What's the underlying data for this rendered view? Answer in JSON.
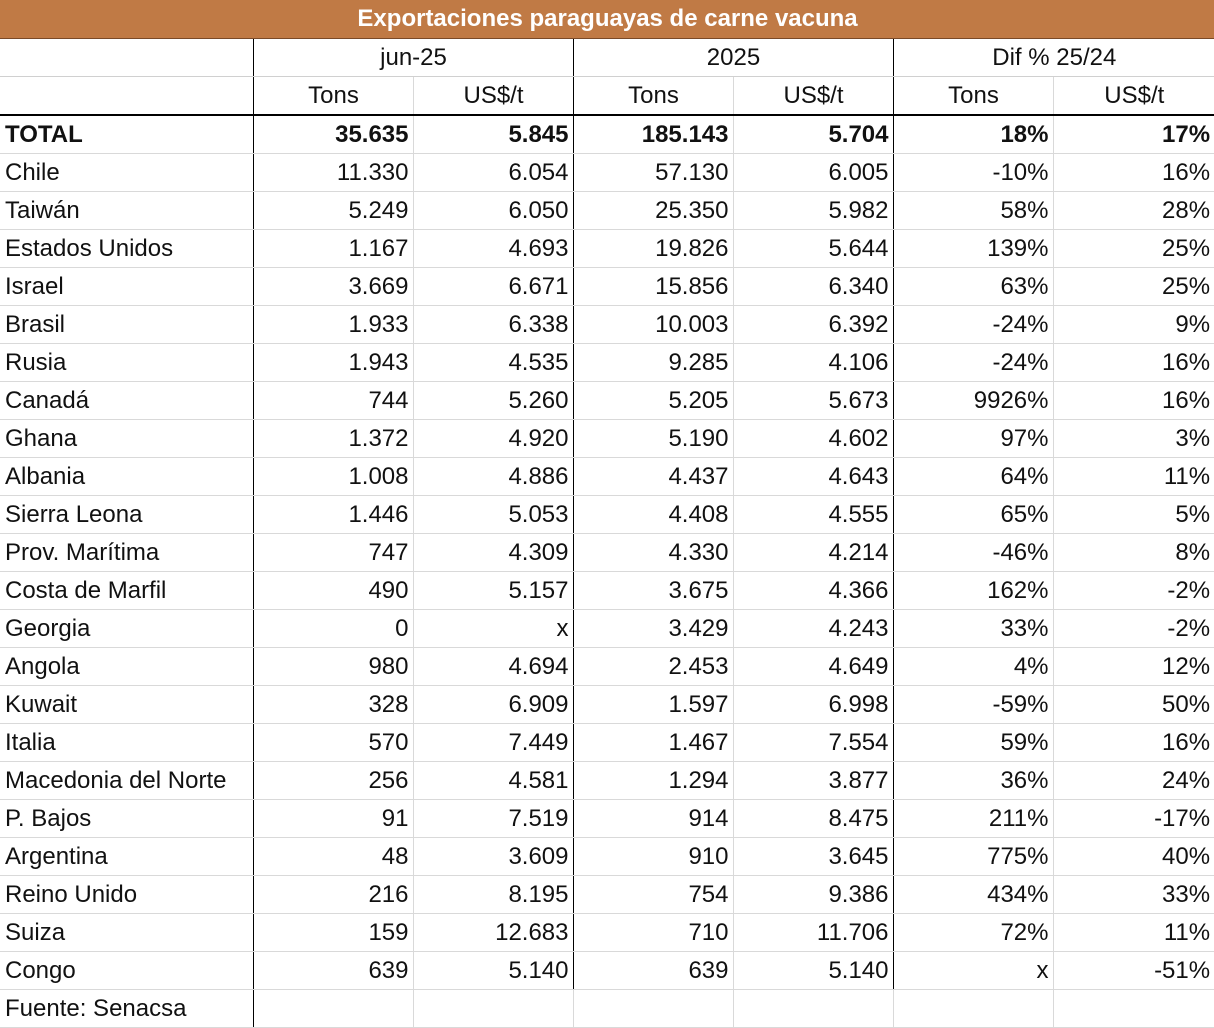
{
  "chart_data": {
    "type": "table",
    "title": "Exportaciones paraguayas de carne vacuna",
    "column_groups": [
      "jun-25",
      "2025",
      "Dif % 25/24"
    ],
    "subcolumns": [
      "Tons",
      "US$/t",
      "Tons",
      "US$/t",
      "Tons",
      "US$/t"
    ],
    "total": {
      "label": "TOTAL",
      "values": [
        "35.635",
        "5.845",
        "185.143",
        "5.704",
        "18%",
        "17%"
      ]
    },
    "rows": [
      {
        "country": "Chile",
        "values": [
          "11.330",
          "6.054",
          "57.130",
          "6.005",
          "-10%",
          "16%"
        ]
      },
      {
        "country": "Taiwán",
        "values": [
          "5.249",
          "6.050",
          "25.350",
          "5.982",
          "58%",
          "28%"
        ]
      },
      {
        "country": "Estados Unidos",
        "values": [
          "1.167",
          "4.693",
          "19.826",
          "5.644",
          "139%",
          "25%"
        ]
      },
      {
        "country": "Israel",
        "values": [
          "3.669",
          "6.671",
          "15.856",
          "6.340",
          "63%",
          "25%"
        ]
      },
      {
        "country": "Brasil",
        "values": [
          "1.933",
          "6.338",
          "10.003",
          "6.392",
          "-24%",
          "9%"
        ]
      },
      {
        "country": "Rusia",
        "values": [
          "1.943",
          "4.535",
          "9.285",
          "4.106",
          "-24%",
          "16%"
        ]
      },
      {
        "country": "Canadá",
        "values": [
          "744",
          "5.260",
          "5.205",
          "5.673",
          "9926%",
          "16%"
        ]
      },
      {
        "country": "Ghana",
        "values": [
          "1.372",
          "4.920",
          "5.190",
          "4.602",
          "97%",
          "3%"
        ]
      },
      {
        "country": "Albania",
        "values": [
          "1.008",
          "4.886",
          "4.437",
          "4.643",
          "64%",
          "11%"
        ]
      },
      {
        "country": "Sierra Leona",
        "values": [
          "1.446",
          "5.053",
          "4.408",
          "4.555",
          "65%",
          "5%"
        ]
      },
      {
        "country": "Prov. Marítima",
        "values": [
          "747",
          "4.309",
          "4.330",
          "4.214",
          "-46%",
          "8%"
        ]
      },
      {
        "country": "Costa de Marfil",
        "values": [
          "490",
          "5.157",
          "3.675",
          "4.366",
          "162%",
          "-2%"
        ]
      },
      {
        "country": "Georgia",
        "values": [
          "0",
          "x",
          "3.429",
          "4.243",
          "33%",
          "-2%"
        ]
      },
      {
        "country": "Angola",
        "values": [
          "980",
          "4.694",
          "2.453",
          "4.649",
          "4%",
          "12%"
        ]
      },
      {
        "country": "Kuwait",
        "values": [
          "328",
          "6.909",
          "1.597",
          "6.998",
          "-59%",
          "50%"
        ]
      },
      {
        "country": "Italia",
        "values": [
          "570",
          "7.449",
          "1.467",
          "7.554",
          "59%",
          "16%"
        ]
      },
      {
        "country": "Macedonia del Norte",
        "values": [
          "256",
          "4.581",
          "1.294",
          "3.877",
          "36%",
          "24%"
        ]
      },
      {
        "country": "P. Bajos",
        "values": [
          "91",
          "7.519",
          "914",
          "8.475",
          "211%",
          "-17%"
        ]
      },
      {
        "country": "Argentina",
        "values": [
          "48",
          "3.609",
          "910",
          "3.645",
          "775%",
          "40%"
        ]
      },
      {
        "country": "Reino Unido",
        "values": [
          "216",
          "8.195",
          "754",
          "9.386",
          "434%",
          "33%"
        ]
      },
      {
        "country": "Suiza",
        "values": [
          "159",
          "12.683",
          "710",
          "11.706",
          "72%",
          "11%"
        ]
      },
      {
        "country": "Congo",
        "values": [
          "639",
          "5.140",
          "639",
          "5.140",
          "x",
          "-51%"
        ]
      }
    ],
    "source": "Fuente: Senacsa"
  },
  "colors": {
    "title_bg": "#c07a45",
    "title_text": "#ffffff"
  }
}
